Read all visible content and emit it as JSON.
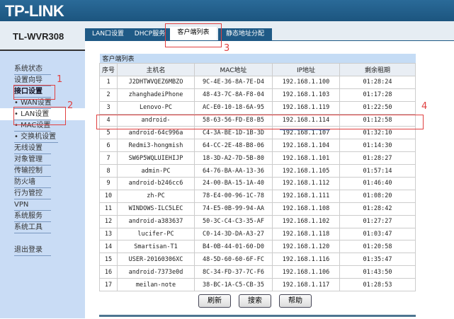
{
  "header": {
    "logo": "TP-LINK",
    "model": "TL-WVR308"
  },
  "sidebar": {
    "items": [
      {
        "label": "系统状态",
        "bold": false
      },
      {
        "label": "设置向导",
        "bold": false
      },
      {
        "label": "接口设置",
        "bold": true
      },
      {
        "label": "• WAN设置",
        "bold": false
      },
      {
        "label": "• LAN设置",
        "bold": false,
        "active": true
      },
      {
        "label": "• MAC设置",
        "bold": false
      },
      {
        "label": "• 交换机设置",
        "bold": false
      },
      {
        "label": "无线设置",
        "bold": false
      },
      {
        "label": "对象管理",
        "bold": false
      },
      {
        "label": "传输控制",
        "bold": false
      },
      {
        "label": "防火墙",
        "bold": false
      },
      {
        "label": "行为管控",
        "bold": false
      },
      {
        "label": "VPN",
        "bold": false
      },
      {
        "label": "系统服务",
        "bold": false
      },
      {
        "label": "系统工具",
        "bold": false
      },
      {
        "label": "退出登录",
        "bold": false
      }
    ]
  },
  "tabs": [
    {
      "label": "LAN口设置"
    },
    {
      "label": "DHCP服务"
    },
    {
      "label": "客户端列表",
      "active": true
    },
    {
      "label": "静态地址分配"
    }
  ],
  "table": {
    "caption": "客户端列表",
    "headers": [
      "序号",
      "主机名",
      "MAC地址",
      "IP地址",
      "剩余租期"
    ],
    "rows": [
      [
        "1",
        "J2DHTWVQEZ6MBZO",
        "9C-4E-36-8A-7E-D4",
        "192.168.1.100",
        "01:28:24"
      ],
      [
        "2",
        "zhanghadeiPhone",
        "48-43-7C-8A-F8-04",
        "192.168.1.103",
        "01:17:28"
      ],
      [
        "3",
        "Lenovo-PC",
        "AC-E0-10-18-6A-95",
        "192.168.1.119",
        "01:22:50"
      ],
      [
        "4",
        "android-",
        "58-63-56-FD-E8-B5",
        "192.168.1.114",
        "01:12:58"
      ],
      [
        "5",
        "android-64c996a",
        "C4-3A-BE-1D-1B-3D",
        "192.168.1.107",
        "01:32:10"
      ],
      [
        "6",
        "Redmi3-hongmish",
        "64-CC-2E-48-B8-06",
        "192.168.1.104",
        "01:14:30"
      ],
      [
        "7",
        "SW6P5WQLUIEHIJP",
        "18-3D-A2-7D-5B-80",
        "192.168.1.101",
        "01:28:27"
      ],
      [
        "8",
        "admin-PC",
        "64-76-BA-AA-13-36",
        "192.168.1.105",
        "01:57:14"
      ],
      [
        "9",
        "android-b246cc6",
        "24-00-BA-15-1A-40",
        "192.168.1.112",
        "01:46:40"
      ],
      [
        "10",
        "zh-PC",
        "78-E4-00-96-1C-78",
        "192.168.1.111",
        "01:08:20"
      ],
      [
        "11",
        "WINDOWS-ILC5LEC",
        "74-E5-0B-99-94-AA",
        "192.168.1.108",
        "01:28:42"
      ],
      [
        "12",
        "android-a383637",
        "50-3C-C4-C3-35-AF",
        "192.168.1.102",
        "01:27:27"
      ],
      [
        "13",
        "lucifer-PC",
        "C0-14-3D-DA-A3-27",
        "192.168.1.118",
        "01:03:47"
      ],
      [
        "14",
        "Smartisan-T1",
        "B4-0B-44-01-60-D0",
        "192.168.1.120",
        "01:20:58"
      ],
      [
        "15",
        "USER-20160306XC",
        "48-5D-60-60-6F-FC",
        "192.168.1.116",
        "01:35:47"
      ],
      [
        "16",
        "android-7373e0d",
        "8C-34-FD-37-7C-F6",
        "192.168.1.106",
        "01:43:50"
      ],
      [
        "17",
        "meilan-note",
        "38-BC-1A-C5-CB-35",
        "192.168.1.117",
        "01:28:53"
      ]
    ]
  },
  "buttons": {
    "refresh": "刷新",
    "search": "搜索",
    "help": "帮助"
  },
  "annotations": [
    "1",
    "2",
    "3",
    "4"
  ],
  "colors": {
    "header": "#1f5a86",
    "sidebar": "#c9dcf5",
    "annotation": "#e04040"
  }
}
